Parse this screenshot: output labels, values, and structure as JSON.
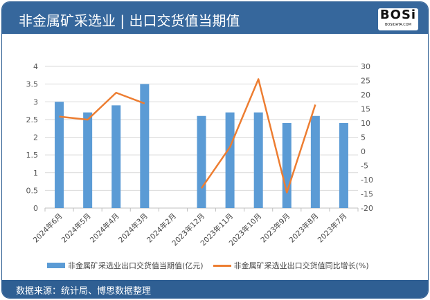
{
  "header": {
    "title": "非金属矿采选业 | 出口交货值当期值",
    "logo_text": "BOSi",
    "logo_sub": "BOSIDATA.COM"
  },
  "footer": {
    "source": "数据来源：统计局、博思数据整理"
  },
  "colors": {
    "bar": "#5b9bd5",
    "line": "#ed7d31",
    "header": "#36679c"
  },
  "chart_data": {
    "type": "bar+line",
    "categories": [
      "2024年6月",
      "2024年5月",
      "2024年4月",
      "2024年3月",
      "2024年2月",
      "2023年12月",
      "2023年11月",
      "2023年10月",
      "2023年9月",
      "2023年8月",
      "2023年7月"
    ],
    "series": [
      {
        "name": "非金属矿采选业出口交货值当期值(亿元)",
        "type": "bar",
        "axis": "left",
        "values": [
          3.0,
          2.7,
          2.9,
          3.5,
          null,
          2.6,
          2.7,
          2.7,
          2.4,
          2.6,
          2.4
        ]
      },
      {
        "name": "非金属矿采选业出口交货值同比增长(%)",
        "type": "line",
        "axis": "right",
        "values": [
          12.3,
          11.2,
          20.7,
          16.9,
          null,
          -13,
          1.5,
          25.5,
          -14.5,
          16.5,
          null
        ]
      }
    ],
    "left_axis": {
      "ylim": [
        0,
        4
      ],
      "ticks": [
        "0",
        "0.5",
        "1",
        "1.5",
        "2",
        "2.5",
        "3",
        "3.5",
        "4"
      ]
    },
    "right_axis": {
      "ylim": [
        -20,
        30
      ],
      "ticks": [
        "-20",
        "-15",
        "-10",
        "-5",
        "0",
        "5",
        "10",
        "15",
        "20",
        "25",
        "30"
      ]
    },
    "grid": true,
    "legend": "bottom"
  }
}
